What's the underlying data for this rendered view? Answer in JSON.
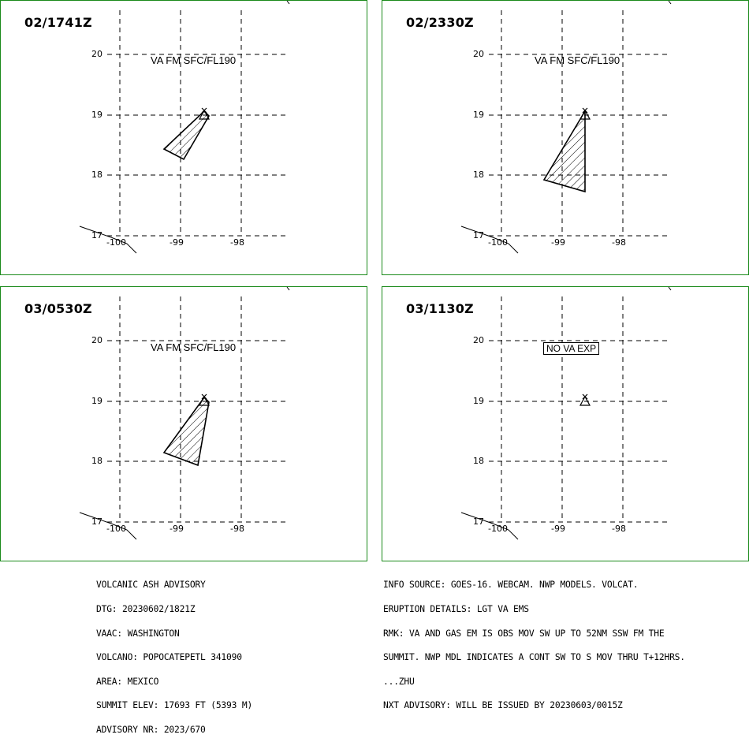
{
  "colors": {
    "frame": "#1a8a1a",
    "lines": "#000000"
  },
  "icons": {
    "volcano": "volcano-triangle-icon"
  },
  "panels": [
    {
      "time": "02/1741Z",
      "label": "VA FM SFC/FL190",
      "label_boxed": false,
      "lat_ticks": [
        "20",
        "19",
        "18",
        "17"
      ],
      "lon_ticks": [
        "-100",
        "-99",
        "-98"
      ]
    },
    {
      "time": "02/2330Z",
      "label": "VA FM SFC/FL190",
      "label_boxed": false,
      "lat_ticks": [
        "20",
        "19",
        "18",
        "17"
      ],
      "lon_ticks": [
        "-100",
        "-99",
        "-98"
      ]
    },
    {
      "time": "03/0530Z",
      "label": "VA FM SFC/FL190",
      "label_boxed": false,
      "lat_ticks": [
        "20",
        "19",
        "18",
        "17"
      ],
      "lon_ticks": [
        "-100",
        "-99",
        "-98"
      ]
    },
    {
      "time": "03/1130Z",
      "label": "NO VA EXP",
      "label_boxed": true,
      "lat_ticks": [
        "20",
        "19",
        "18",
        "17"
      ],
      "lon_ticks": [
        "-100",
        "-99",
        "-98"
      ]
    }
  ],
  "advisory_left": [
    "VOLCANIC ASH ADVISORY",
    "DTG: 20230602/1821Z",
    "VAAC: WASHINGTON",
    "VOLCANO: POPOCATEPETL 341090",
    "AREA: MEXICO",
    "SUMMIT ELEV: 17693 FT (5393 M)",
    "ADVISORY NR: 2023/670"
  ],
  "advisory_right": [
    "INFO SOURCE: GOES-16. WEBCAM. NWP MODELS. VOLCAT.",
    "ERUPTION DETAILS: LGT VA EMS",
    "RMK: VA AND GAS EM IS OBS MOV SW UP TO 52NM SSW FM THE",
    "SUMMIT. NWP MDL INDICATES A CONT SW TO S MOV THRU T+12HRS.",
    "...ZHU",
    "NXT ADVISORY: WILL BE ISSUED BY 20230603/0015Z"
  ]
}
